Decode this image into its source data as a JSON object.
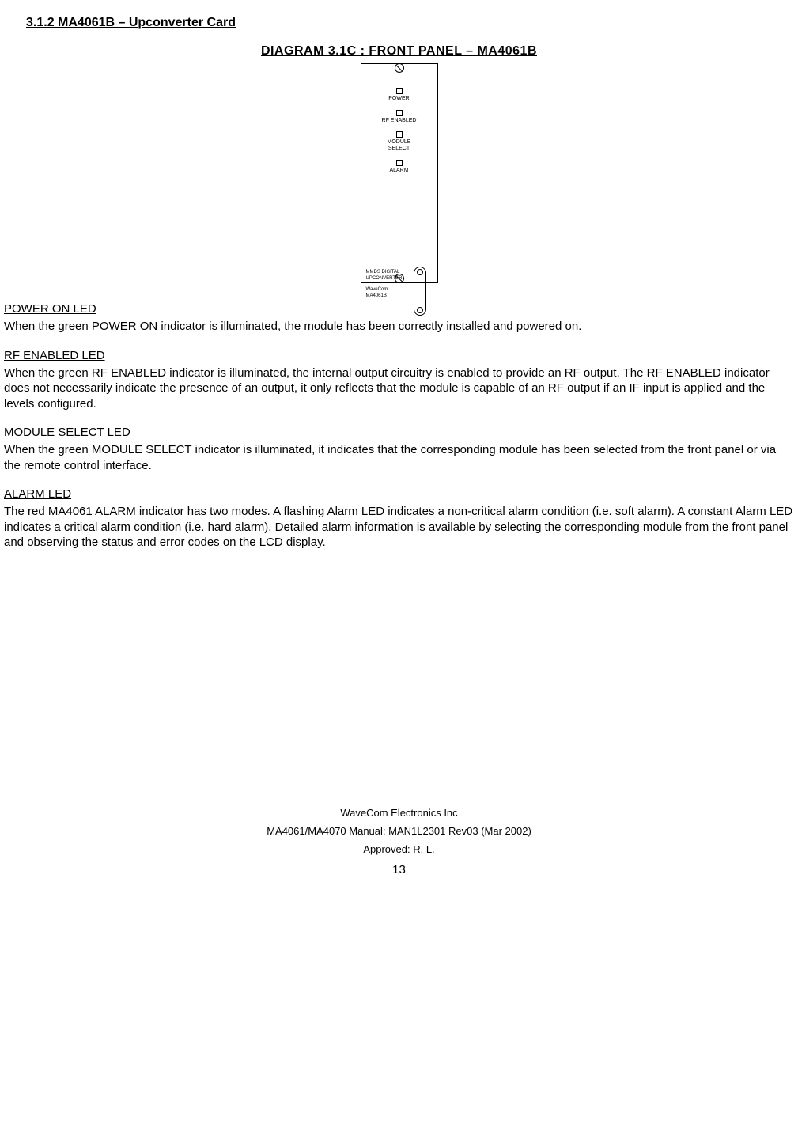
{
  "heading": "3.1.2 MA4061B – Upconverter Card",
  "diagram": {
    "title": "DIAGRAM 3.1C : FRONT PANEL – MA4061B",
    "leds": [
      {
        "label": "POWER"
      },
      {
        "label": "RF ENABLED"
      },
      {
        "label": "MODULE\nSELECT"
      },
      {
        "label": "ALARM"
      }
    ],
    "panel_text": {
      "l1": "MMDS DIGITAL",
      "l2": "UPCONVERTER",
      "l3": "WaveCom",
      "l4": "MA4061B"
    }
  },
  "sections": [
    {
      "title": "POWER ON LED",
      "body": "When the green POWER ON indicator is illuminated, the module has been correctly installed and powered on."
    },
    {
      "title": "RF ENABLED LED",
      "body": "When the green RF ENABLED indicator is illuminated, the internal output circuitry is enabled to provide an RF output. The RF ENABLED indicator does not necessarily indicate the presence of an output, it only reflects that the module is capable of an RF output if an IF input is applied and the levels configured."
    },
    {
      "title": "MODULE SELECT LED",
      "body": "When the green MODULE SELECT indicator is illuminated, it indicates that the corresponding module has been selected from the front panel or via the remote control interface."
    },
    {
      "title": "ALARM LED",
      "body": "The red MA4061 ALARM indicator has two modes. A flashing Alarm LED indicates a non-critical alarm condition (i.e. soft alarm). A constant Alarm LED indicates a critical alarm condition (i.e. hard alarm). Detailed alarm information is available by selecting the corresponding module from the front panel and observing the status and error codes on the LCD display."
    }
  ],
  "footer": {
    "company": "WaveCom Electronics Inc",
    "manual": "MA4061/MA4070 Manual; MAN1L2301 Rev03 (Mar 2002)",
    "approved": "Approved: R. L.",
    "page": "13"
  }
}
